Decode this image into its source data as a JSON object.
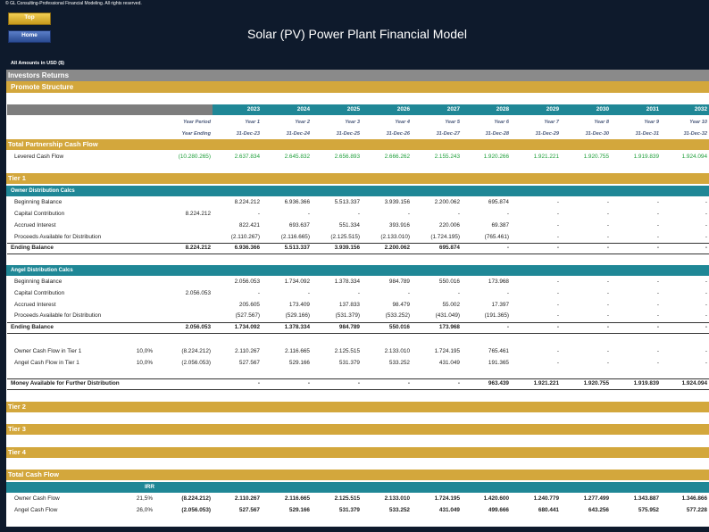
{
  "copyright": "© GL Consulting-Professional Financial Modeling. All rights reserved.",
  "buttons": [
    "Top",
    "Home"
  ],
  "title": "Solar (PV) Power Plant Financial Model",
  "units_note": "All Amounts in  USD ($)",
  "section": "Investors Returns",
  "subsection": "Promote Structure",
  "years": [
    "2023",
    "2024",
    "2025",
    "2026",
    "2027",
    "2028",
    "2029",
    "2030",
    "2031",
    "2032"
  ],
  "period_label": "Year Period",
  "periods": [
    "Year 1",
    "Year 2",
    "Year 3",
    "Year 4",
    "Year 5",
    "Year 6",
    "Year 7",
    "Year 8",
    "Year 9",
    "Year 10"
  ],
  "ending_label": "Year Ending",
  "dates": [
    "31-Dec-23",
    "31-Dec-24",
    "31-Dec-25",
    "31-Dec-26",
    "31-Dec-27",
    "31-Dec-28",
    "31-Dec-29",
    "31-Dec-30",
    "31-Dec-31",
    "31-Dec-32"
  ],
  "total_partnership": {
    "title": "Total Partnership Cash Flow",
    "levered": {
      "label": "Levered Cash Flow",
      "total": "(10.280.265)",
      "values": [
        "2.637.834",
        "2.645.832",
        "2.656.893",
        "2.666.262",
        "2.155.243",
        "1.920.266",
        "1.921.221",
        "1.920.755",
        "1.919.839",
        "1.924.094"
      ]
    }
  },
  "tier1": {
    "title": "Tier 1",
    "owner": {
      "title": "Owner Distribution Calcs",
      "beginning": {
        "label": "Beginning Balance",
        "values": [
          "8.224.212",
          "6.936.366",
          "5.513.337",
          "3.939.156",
          "2.200.062",
          "695.874",
          "-",
          "-",
          "-",
          "-"
        ]
      },
      "capital": {
        "label": "Capital Contribution",
        "total": "8.224.212",
        "values": [
          "-",
          "-",
          "-",
          "-",
          "-",
          "-",
          "-",
          "-",
          "-",
          "-"
        ]
      },
      "interest": {
        "label": "Accrued Interest",
        "values": [
          "822.421",
          "693.637",
          "551.334",
          "393.916",
          "220.006",
          "69.387",
          "-",
          "-",
          "-",
          "-"
        ]
      },
      "proceeds": {
        "label": "Proceeds Available for Distribution",
        "values": [
          "(2.110.267)",
          "(2.116.665)",
          "(2.125.515)",
          "(2.133.010)",
          "(1.724.195)",
          "(765.461)",
          "-",
          "-",
          "-",
          "-"
        ]
      },
      "ending": {
        "label": "Ending Balance",
        "total": "8.224.212",
        "values": [
          "6.936.366",
          "5.513.337",
          "3.939.156",
          "2.200.062",
          "695.874",
          "-",
          "-",
          "-",
          "-",
          "-"
        ]
      }
    },
    "angel": {
      "title": "Angel Distribution Calcs",
      "beginning": {
        "label": "Beginning Balance",
        "values": [
          "2.056.053",
          "1.734.092",
          "1.378.334",
          "984.789",
          "550.016",
          "173.968",
          "-",
          "-",
          "-",
          "-"
        ]
      },
      "capital": {
        "label": "Capital Contribution",
        "total": "2.056.053",
        "values": [
          "-",
          "-",
          "-",
          "-",
          "-",
          "-",
          "-",
          "-",
          "-",
          "-"
        ]
      },
      "interest": {
        "label": "Accrued Interest",
        "values": [
          "205.605",
          "173.409",
          "137.833",
          "98.479",
          "55.002",
          "17.397",
          "-",
          "-",
          "-",
          "-"
        ]
      },
      "proceeds": {
        "label": "Proceeds Available for Distribution",
        "values": [
          "(527.567)",
          "(529.166)",
          "(531.379)",
          "(533.252)",
          "(431.049)",
          "(191.365)",
          "-",
          "-",
          "-",
          "-"
        ]
      },
      "ending": {
        "label": "Ending Balance",
        "total": "2.056.053",
        "values": [
          "1.734.092",
          "1.378.334",
          "984.789",
          "550.016",
          "173.968",
          "-",
          "-",
          "-",
          "-",
          "-"
        ]
      }
    },
    "owner_cf": {
      "label": "Owner Cash Flow in Tier 1",
      "rate": "10,0%",
      "total": "(8.224.212)",
      "values": [
        "2.110.267",
        "2.116.665",
        "2.125.515",
        "2.133.010",
        "1.724.195",
        "765.461",
        "-",
        "-",
        "-",
        "-"
      ]
    },
    "angel_cf": {
      "label": "Angel Cash Flow in Tier 1",
      "rate": "10,0%",
      "total": "(2.056.053)",
      "values": [
        "527.567",
        "529.166",
        "531.379",
        "533.252",
        "431.049",
        "191.365",
        "-",
        "-",
        "-",
        "-"
      ]
    },
    "money": {
      "label": "Money Available for Further Distribution",
      "values": [
        "-",
        "-",
        "-",
        "-",
        "-",
        "963.439",
        "1.921.221",
        "1.920.755",
        "1.919.839",
        "1.924.094"
      ]
    }
  },
  "tier2": {
    "title": "Tier 2"
  },
  "tier3": {
    "title": "Tier 3"
  },
  "tier4": {
    "title": "Tier 4"
  },
  "total_cash_flow": {
    "title": "Total Cash Flow",
    "irr_label": "IRR",
    "owner": {
      "label": "Owner Cash Flow",
      "rate": "21,5%",
      "total": "(8.224.212)",
      "values": [
        "2.110.267",
        "2.116.665",
        "2.125.515",
        "2.133.010",
        "1.724.195",
        "1.420.600",
        "1.240.779",
        "1.277.499",
        "1.343.887",
        "1.346.866"
      ]
    },
    "angel": {
      "label": "Angel Cash Flow",
      "rate": "26,0%",
      "total": "(2.056.053)",
      "values": [
        "527.567",
        "529.166",
        "531.379",
        "533.252",
        "431.049",
        "499.666",
        "680.441",
        "643.256",
        "575.952",
        "577.228"
      ]
    }
  }
}
